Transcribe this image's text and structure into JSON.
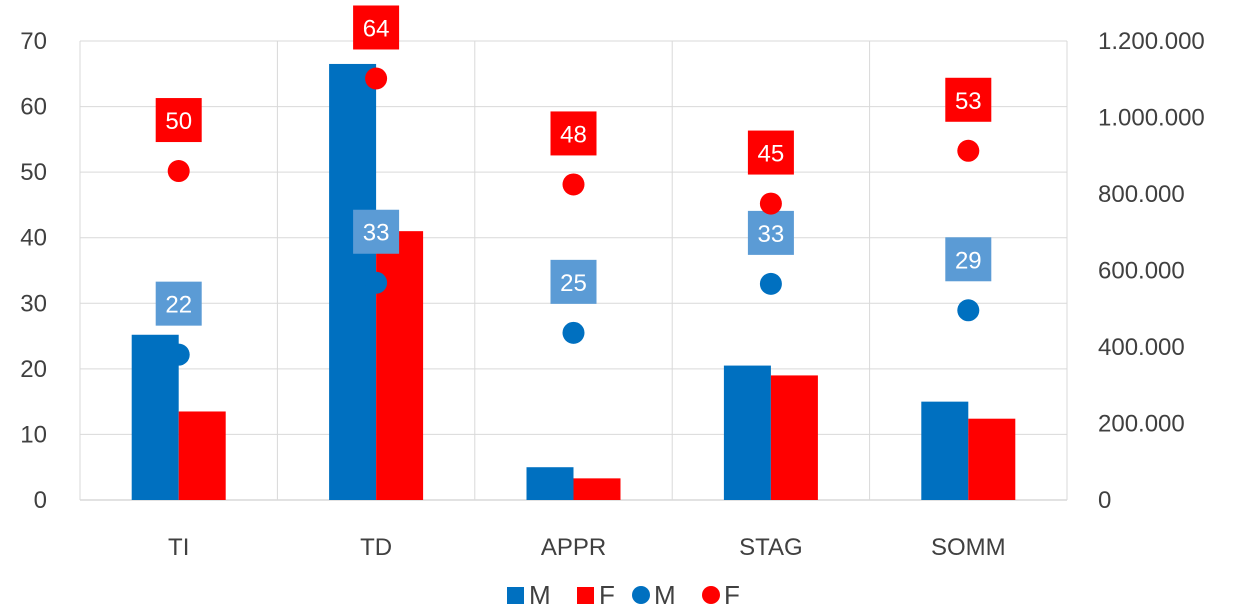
{
  "chart_data": {
    "type": "bar",
    "categories": [
      "TI",
      "TD",
      "APPR",
      "STAG",
      "SOMM"
    ],
    "series": [
      {
        "name": "M",
        "kind": "bar",
        "axis": "primary",
        "color": "#0070C0",
        "values": [
          25.2,
          66.5,
          5.0,
          20.5,
          15.0
        ]
      },
      {
        "name": "F",
        "kind": "bar",
        "axis": "primary",
        "color": "#FF0000",
        "values": [
          13.5,
          41.0,
          3.3,
          19.0,
          12.4
        ]
      },
      {
        "name": "M",
        "kind": "scatter",
        "axis": "secondary",
        "color": "#0070C0",
        "label_color": "#5B9BD5",
        "values": [
          380000,
          568000,
          437000,
          565000,
          496000
        ],
        "labels": [
          "22",
          "33",
          "25",
          "33",
          "29"
        ]
      },
      {
        "name": "F",
        "kind": "scatter",
        "axis": "secondary",
        "color": "#FF0000",
        "label_color": "#FF0000",
        "values": [
          860000,
          1102000,
          825000,
          775000,
          913000
        ],
        "labels": [
          "50",
          "64",
          "48",
          "45",
          "53"
        ]
      }
    ],
    "y_left": {
      "ylim": [
        0,
        70
      ],
      "ticks": [
        "0",
        "10",
        "20",
        "30",
        "40",
        "50",
        "60",
        "70"
      ]
    },
    "y_right": {
      "ylim": [
        0,
        1200000
      ],
      "ticks": [
        "0",
        "200.000",
        "400.000",
        "600.000",
        "800.000",
        "1.000.000",
        "1.200.000"
      ]
    },
    "grid": true,
    "legend_position": "bottom",
    "legend": [
      "M",
      "F",
      "M",
      "F"
    ],
    "title": "",
    "xlabel": "",
    "ylabel": ""
  }
}
